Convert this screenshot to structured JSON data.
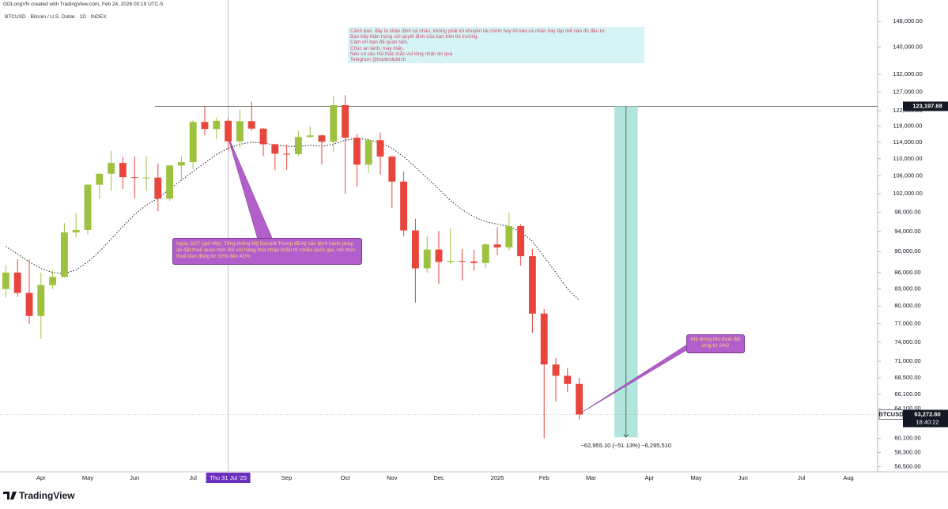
{
  "chart_data": {
    "type": "candlestick",
    "credit": "GDLongVN created with TradingView.com, Feb 24, 2026 00:19 UTC-5",
    "title": "BTCUSD · Bitcoin / U.S. Dollar · 1D · INDEX",
    "brand": "TradingView",
    "categories": [
      null,
      null,
      null,
      "Apr",
      null,
      null,
      null,
      "May",
      null,
      null,
      null,
      "Jun",
      null,
      null,
      null,
      null,
      "Jul",
      null,
      null,
      null,
      null,
      null,
      null,
      null,
      "Sep",
      null,
      null,
      null,
      null,
      "Oct",
      null,
      null,
      null,
      "Nov",
      null,
      null,
      null,
      "Dec",
      null,
      null,
      null,
      null,
      "2026",
      null,
      null,
      null,
      "Feb",
      null,
      null,
      null,
      "Mar",
      null,
      null,
      null,
      null,
      "Apr",
      null,
      null,
      null,
      "May",
      null,
      null,
      null,
      "Jun",
      null,
      null,
      null,
      null,
      "Jul",
      null,
      null,
      null,
      "Aug",
      null,
      null
    ],
    "open": [
      83000,
      86000,
      82300,
      78300,
      83700,
      85200,
      93800,
      94300,
      104000,
      106500,
      109000,
      105700,
      105600,
      105600,
      100900,
      108400,
      109200,
      119100,
      117300,
      119400,
      114200,
      119300,
      117400,
      113500,
      111200,
      111100,
      115300,
      115700,
      114100,
      123500,
      115100,
      108600,
      114500,
      110500,
      104700,
      94200,
      86800,
      90400,
      88000,
      88200,
      88100,
      87800,
      91400,
      90800,
      95100,
      89100,
      78700,
      70500,
      68800,
      67600,
      null,
      null,
      null,
      null,
      null,
      null,
      null,
      null,
      null,
      null,
      null,
      null,
      null,
      null,
      null,
      null,
      null,
      null,
      null,
      null,
      null,
      null,
      null,
      null,
      null
    ],
    "high": [
      87400,
      88500,
      88500,
      86000,
      86500,
      95700,
      97800,
      104100,
      106600,
      111900,
      110500,
      110500,
      110600,
      108900,
      108500,
      110500,
      119500,
      123200,
      120200,
      120000,
      122300,
      124500,
      117600,
      113600,
      113400,
      116800,
      117900,
      115900,
      125800,
      126200,
      116000,
      114900,
      116400,
      110700,
      107000,
      96600,
      93000,
      94100,
      94600,
      90500,
      90300,
      91600,
      94800,
      97900,
      95500,
      90500,
      79500,
      71500,
      70000,
      68500,
      null,
      null,
      null,
      null,
      null,
      null,
      null,
      null,
      null,
      null,
      null,
      null,
      null,
      null,
      null,
      null,
      null,
      null,
      null,
      null,
      null,
      null,
      null,
      null,
      null
    ],
    "low": [
      81500,
      81600,
      77000,
      74500,
      83000,
      85100,
      92900,
      93400,
      100800,
      102700,
      103100,
      101000,
      102600,
      98200,
      100400,
      105200,
      107500,
      115700,
      114700,
      112000,
      112700,
      116800,
      110700,
      107300,
      107400,
      110700,
      115200,
      108600,
      111600,
      102000,
      103500,
      106700,
      106300,
      98900,
      93000,
      80600,
      86000,
      83900,
      87600,
      84500,
      86400,
      86800,
      89300,
      90200,
      87300,
      75500,
      60100,
      65100,
      66400,
      62600,
      null,
      null,
      null,
      null,
      null,
      null,
      null,
      null,
      null,
      null,
      null,
      null,
      null,
      null,
      null,
      null,
      null,
      null,
      null,
      null,
      null,
      null,
      null,
      null,
      null
    ],
    "close": [
      86000,
      82300,
      78300,
      83700,
      85200,
      93800,
      94300,
      104000,
      106500,
      109000,
      105700,
      105600,
      105600,
      100900,
      108400,
      109200,
      119100,
      117300,
      119400,
      114200,
      119300,
      117400,
      113500,
      111200,
      111100,
      115300,
      115700,
      114100,
      123500,
      115100,
      108600,
      114500,
      110500,
      104700,
      94200,
      86800,
      90400,
      88000,
      88200,
      88100,
      87800,
      91400,
      90800,
      95100,
      89100,
      78700,
      70500,
      68800,
      67600,
      63272.6,
      null,
      null,
      null,
      null,
      null,
      null,
      null,
      null,
      null,
      null,
      null,
      null,
      null,
      null,
      null,
      null,
      null,
      null,
      null,
      null,
      null,
      null,
      null,
      null,
      null
    ],
    "up_color": "#9cc23f",
    "down_color": "#e8453c",
    "ma": {
      "color": "#222222",
      "values": [
        91000,
        89500,
        88000,
        86800,
        86000,
        85800,
        86500,
        88000,
        90000,
        92500,
        95000,
        97500,
        99500,
        101000,
        103000,
        105000,
        107000,
        109000,
        111000,
        112500,
        113500,
        114000,
        113800,
        113300,
        113000,
        113000,
        113200,
        113000,
        113500,
        114500,
        115000,
        114600,
        113800,
        112500,
        110500,
        108000,
        105500,
        103000,
        100500,
        98500,
        97000,
        96000,
        95500,
        95000,
        94000,
        92000,
        89000,
        86000,
        83000,
        81000,
        null,
        null,
        null,
        null,
        null,
        null,
        null,
        null,
        null,
        null,
        null,
        null,
        null,
        null,
        null,
        null,
        null,
        null,
        null,
        null,
        null,
        null,
        null,
        null,
        null
      ]
    },
    "log_scale": true,
    "grid": false,
    "ylim": [
      55900,
      152400
    ],
    "yticks": [
      {
        "value": 148000,
        "label": "148,000.00"
      },
      {
        "value": 140000,
        "label": "140,000.00"
      },
      {
        "value": 132000,
        "label": "132,000.00"
      },
      {
        "value": 127000,
        "label": "127,000.00"
      },
      {
        "value": 122000,
        "label": "122,000.00"
      },
      {
        "value": 118000,
        "label": "118,000.00"
      },
      {
        "value": 114000,
        "label": "114,000.00"
      },
      {
        "value": 110000,
        "label": "110,000.00"
      },
      {
        "value": 106000,
        "label": "106,000.00"
      },
      {
        "value": 102000,
        "label": "102,000.00"
      },
      {
        "value": 98000,
        "label": "98,000.00"
      },
      {
        "value": 94000,
        "label": "94,000.00"
      },
      {
        "value": 90000,
        "label": "90,000.00"
      },
      {
        "value": 86000,
        "label": "86,000.00"
      },
      {
        "value": 83000,
        "label": "83,000.00"
      },
      {
        "value": 80000,
        "label": "80,000.00"
      },
      {
        "value": 77000,
        "label": "77,000.00"
      },
      {
        "value": 74000,
        "label": "74,000.00"
      },
      {
        "value": 71000,
        "label": "71,000.00"
      },
      {
        "value": 68500,
        "label": "68,500.00"
      },
      {
        "value": 66100,
        "label": "66,100.00"
      },
      {
        "value": 64100,
        "label": "64,100.00"
      },
      {
        "value": 60100,
        "label": "60,100.00"
      },
      {
        "value": 58300,
        "label": "58,300.00"
      },
      {
        "value": 56500,
        "label": "56,500.00"
      }
    ],
    "price_line": {
      "value": 123197.68,
      "label": "123,197.68"
    },
    "current": {
      "symbol": "BTCUSD",
      "value": 63272.6,
      "label": "63,272.60",
      "countdown": "18:40:22"
    },
    "crosshair_label": "Thu 31 Jul '25",
    "measure": {
      "from": 123197.68,
      "to": 60242.58,
      "label": "−62,955.10 (−51.13%) −6,295,510"
    },
    "note": [
      "Cảnh báo: đây là nhận định cá nhân, không phải lời khuyên tài chính hay lôi kéo cá nhân hay tập thể nào đó đầu tư.",
      "Bạn hãy thận trọng với quyết định của bạn trên thị trường.",
      "Cám ơn bạn đã quan tâm.",
      "Chúc an lành, may mắn.",
      "Nếu có câu hỏi thắc mắc vui lòng nhắn tin qua",
      "Telegram @traderduklich"
    ],
    "callouts": [
      "Ngày 31/7 (giờ Mỹ), Tổng thống Mỹ Donald Trump đã ký sắc lệnh hành pháp áp đặt thuế quan mới đối với hàng hóa nhập khẩu từ nhiều quốc gia, với mức thuế dao động từ 10% đến 41%",
      "Mỹ dừng thu thuế đối ứng từ 24/2"
    ]
  }
}
